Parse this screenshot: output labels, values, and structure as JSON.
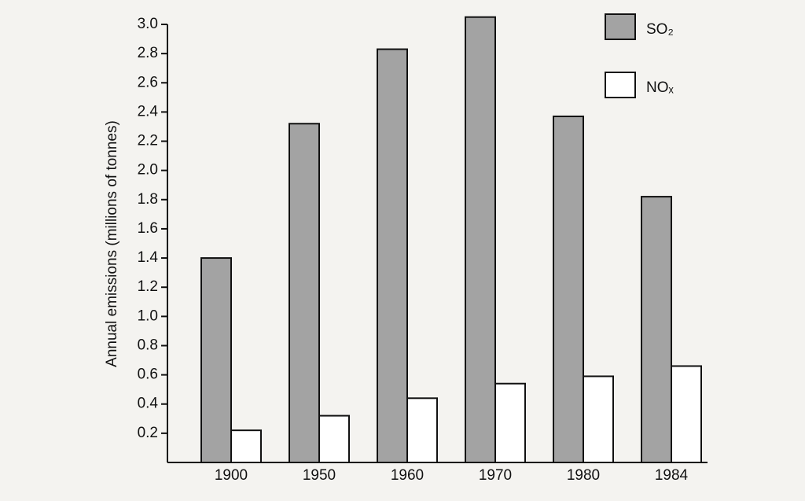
{
  "chart_data": {
    "type": "bar",
    "y_label": "Annual emissions (millions of tonnes)",
    "categories": [
      "1900",
      "1950",
      "1960",
      "1970",
      "1980",
      "1984"
    ],
    "series": [
      {
        "name": "SO₂",
        "color": "#a3a3a3",
        "values": [
          1.4,
          2.32,
          2.83,
          3.05,
          2.37,
          1.82
        ]
      },
      {
        "name": "NOₓ",
        "color": "#ffffff",
        "values": [
          0.22,
          0.32,
          0.44,
          0.54,
          0.59,
          0.66
        ]
      }
    ],
    "ylim": [
      0,
      3.1
    ],
    "yticks": [
      0.2,
      0.4,
      0.6,
      0.8,
      {
        "value": 1.0,
        "label": "1.0"
      },
      1.2,
      1.4,
      1.6,
      1.8,
      {
        "value": 2.0,
        "label": "2.0"
      },
      2.2,
      2.4,
      2.6,
      2.8,
      {
        "value": 3.0,
        "label": "3.0"
      }
    ],
    "legend": "top-right"
  }
}
